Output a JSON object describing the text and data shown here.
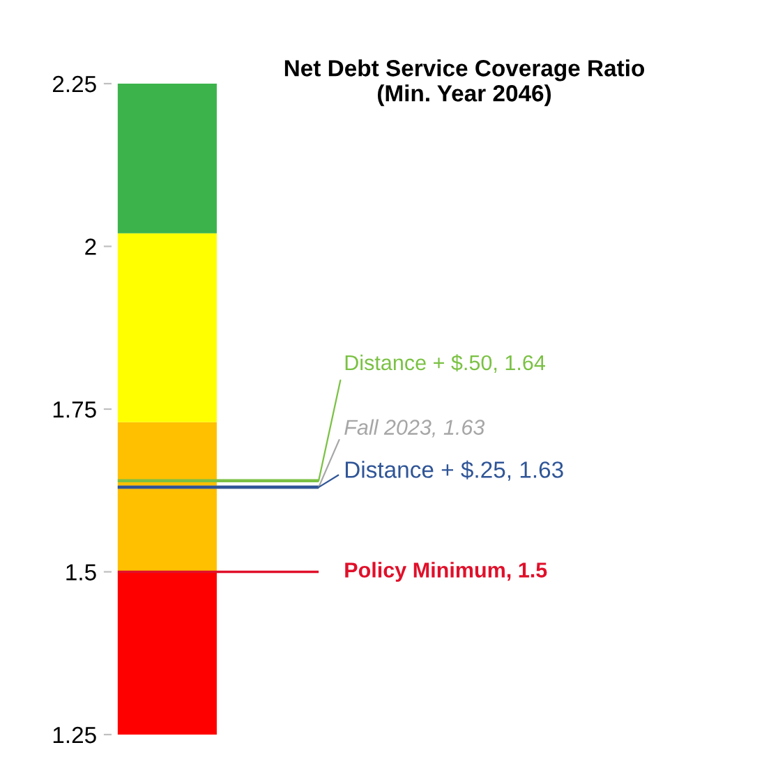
{
  "chart_data": {
    "type": "bar",
    "title": "Net Debt Service Coverage Ratio\n(Min. Year 2046)",
    "categories": [
      null
    ],
    "ylim": [
      1.25,
      2.25
    ],
    "yticks": [
      1.25,
      1.5,
      1.75,
      2,
      2.25
    ],
    "grid": false,
    "legend": false,
    "bands": [
      {
        "axis": "y",
        "from": 1.25,
        "to": 1.5,
        "color": "#ff0000"
      },
      {
        "axis": "y",
        "from": 1.5,
        "to": 1.73,
        "color": "#ffc000"
      },
      {
        "axis": "y",
        "from": 1.73,
        "to": 2.02,
        "color": "#ffff00"
      },
      {
        "axis": "y",
        "from": 2.02,
        "to": 2.25,
        "color": "#3cb44b"
      }
    ],
    "ref_lines": [
      {
        "axis": "y",
        "value": 1.5,
        "label": "Policy Minimum, 1.5",
        "color": "#e0102a"
      },
      {
        "axis": "y",
        "value": 1.63,
        "label": "Fall 2023, 1.63",
        "color": "#a6a6a6"
      },
      {
        "axis": "y",
        "value": 1.64,
        "label": "Distance + $.50, 1.64",
        "color": "#7ac143"
      },
      {
        "axis": "y",
        "value": 1.63,
        "label": "Distance + $.25, 1.63",
        "color": "#2f5597"
      }
    ]
  }
}
